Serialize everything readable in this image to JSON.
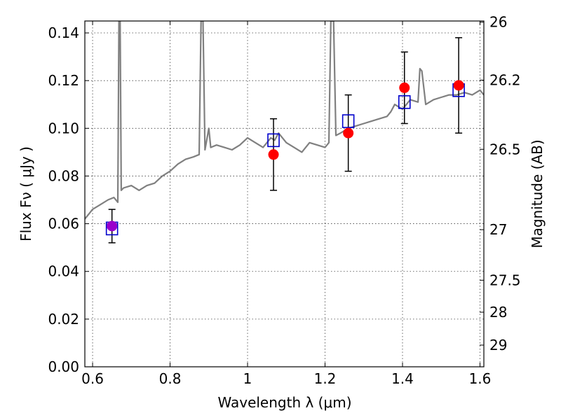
{
  "chart_data": {
    "type": "scatter",
    "title": "",
    "xlabel": "Wavelength  λ (μm)",
    "ylabel": "Flux  Fν  ( μJy )",
    "y2label": "Magnitude (AB)",
    "xlim": [
      0.58,
      1.61
    ],
    "ylim": [
      0.0,
      0.145
    ],
    "grid": true,
    "xticks": [
      0.6,
      0.8,
      1.0,
      1.2,
      1.4,
      1.6
    ],
    "xtick_labels": [
      "0.6",
      "0.8",
      "1",
      "1.2",
      "1.4",
      "1.6"
    ],
    "yticks": [
      0.0,
      0.02,
      0.04,
      0.06,
      0.08,
      0.1,
      0.12,
      0.14
    ],
    "ytick_labels": [
      "0.00",
      "0.02",
      "0.04",
      "0.06",
      "0.08",
      "0.10",
      "0.12",
      "0.14"
    ],
    "y2ticks": [
      {
        "label": "26",
        "flux": 0.1445
      },
      {
        "label": "26.2",
        "flux": 0.1202
      },
      {
        "label": "26.5",
        "flux": 0.0912
      },
      {
        "label": "27",
        "flux": 0.0575
      },
      {
        "label": "27.5",
        "flux": 0.0363
      },
      {
        "label": "28",
        "flux": 0.0229
      },
      {
        "label": "29",
        "flux": 0.0091
      }
    ],
    "series": [
      {
        "kind": "line",
        "color": "#808080",
        "points": [
          [
            0.58,
            0.062
          ],
          [
            0.6,
            0.066
          ],
          [
            0.62,
            0.068
          ],
          [
            0.64,
            0.07
          ],
          [
            0.655,
            0.071
          ],
          [
            0.665,
            0.069
          ],
          [
            0.668,
            0.145
          ],
          [
            0.671,
            0.145
          ],
          [
            0.674,
            0.074
          ],
          [
            0.68,
            0.075
          ],
          [
            0.7,
            0.076
          ],
          [
            0.72,
            0.074
          ],
          [
            0.74,
            0.076
          ],
          [
            0.76,
            0.077
          ],
          [
            0.78,
            0.08
          ],
          [
            0.8,
            0.082
          ],
          [
            0.82,
            0.085
          ],
          [
            0.84,
            0.087
          ],
          [
            0.86,
            0.088
          ],
          [
            0.875,
            0.089
          ],
          [
            0.88,
            0.145
          ],
          [
            0.885,
            0.145
          ],
          [
            0.89,
            0.091
          ],
          [
            0.9,
            0.1
          ],
          [
            0.905,
            0.092
          ],
          [
            0.92,
            0.093
          ],
          [
            0.94,
            0.092
          ],
          [
            0.96,
            0.091
          ],
          [
            0.98,
            0.093
          ],
          [
            1.0,
            0.096
          ],
          [
            1.02,
            0.094
          ],
          [
            1.04,
            0.092
          ],
          [
            1.06,
            0.096
          ],
          [
            1.07,
            0.095
          ],
          [
            1.08,
            0.098
          ],
          [
            1.1,
            0.094
          ],
          [
            1.12,
            0.092
          ],
          [
            1.14,
            0.09
          ],
          [
            1.16,
            0.094
          ],
          [
            1.18,
            0.093
          ],
          [
            1.2,
            0.092
          ],
          [
            1.21,
            0.094
          ],
          [
            1.215,
            0.145
          ],
          [
            1.222,
            0.145
          ],
          [
            1.228,
            0.097
          ],
          [
            1.24,
            0.098
          ],
          [
            1.26,
            0.1
          ],
          [
            1.28,
            0.101
          ],
          [
            1.3,
            0.102
          ],
          [
            1.32,
            0.103
          ],
          [
            1.34,
            0.104
          ],
          [
            1.36,
            0.105
          ],
          [
            1.37,
            0.107
          ],
          [
            1.38,
            0.11
          ],
          [
            1.4,
            0.108
          ],
          [
            1.42,
            0.112
          ],
          [
            1.44,
            0.111
          ],
          [
            1.445,
            0.125
          ],
          [
            1.45,
            0.124
          ],
          [
            1.46,
            0.11
          ],
          [
            1.48,
            0.112
          ],
          [
            1.5,
            0.113
          ],
          [
            1.52,
            0.114
          ],
          [
            1.54,
            0.114
          ],
          [
            1.56,
            0.115
          ],
          [
            1.58,
            0.114
          ],
          [
            1.6,
            0.116
          ],
          [
            1.61,
            0.114
          ]
        ]
      },
      {
        "kind": "scatter",
        "marker": "filled-circle",
        "color": "#ff0000",
        "points": [
          {
            "x": 0.65,
            "y": 0.059,
            "yerr": 0.007,
            "color": "#9900cc"
          },
          {
            "x": 1.067,
            "y": 0.089,
            "yerr": 0.015
          },
          {
            "x": 1.26,
            "y": 0.098,
            "yerr": 0.016
          },
          {
            "x": 1.405,
            "y": 0.117,
            "yerr": 0.015
          },
          {
            "x": 1.545,
            "y": 0.118,
            "yerr": 0.02
          }
        ]
      },
      {
        "kind": "scatter",
        "marker": "open-square",
        "color": "#0000cc",
        "points": [
          {
            "x": 0.65,
            "y": 0.058
          },
          {
            "x": 1.067,
            "y": 0.095
          },
          {
            "x": 1.26,
            "y": 0.103
          },
          {
            "x": 1.405,
            "y": 0.111
          },
          {
            "x": 1.545,
            "y": 0.116
          }
        ]
      }
    ]
  }
}
